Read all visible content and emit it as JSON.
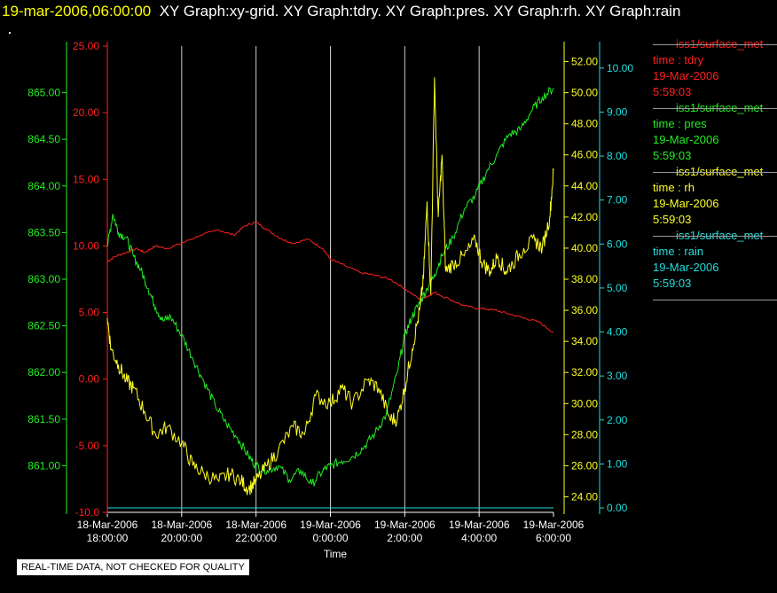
{
  "header": {
    "timestamp": "19-mar-2006,06:00:00",
    "graphs": "XY Graph:xy-grid.  XY Graph:tdry.  XY Graph:pres.  XY Graph:rh.  XY Graph:rain"
  },
  "notice": "REAL-TIME DATA, NOT CHECKED FOR QUALITY",
  "colors": {
    "tdry": "#ff2020",
    "pres": "#22ee22",
    "rh": "#ffff22",
    "rain": "#22dddd",
    "grid": "#cccccc"
  },
  "legend": [
    {
      "source": "iss1/surface_met",
      "time_label": "time : tdry",
      "date": "19-Mar-2006",
      "time": "5:59:03",
      "color": "#ff2020"
    },
    {
      "source": "iss1/surface_met",
      "time_label": "time : pres",
      "date": "19-Mar-2006",
      "time": "5:59:03",
      "color": "#22ee22"
    },
    {
      "source": "iss1/surface_met",
      "time_label": "time : rh",
      "date": "19-Mar-2006",
      "time": "5:59:03",
      "color": "#ffff22"
    },
    {
      "source": "iss1/surface_met",
      "time_label": "time : rain",
      "date": "19-Mar-2006",
      "time": "5:59:03",
      "color": "#22dddd"
    }
  ],
  "chart_data": {
    "type": "line",
    "xlabel": "Time",
    "x_ticks": [
      {
        "label1": "18-Mar-2006",
        "label2": "18:00:00",
        "h": 0
      },
      {
        "label1": "18-Mar-2006",
        "label2": "20:00:00",
        "h": 2
      },
      {
        "label1": "18-Mar-2006",
        "label2": "22:00:00",
        "h": 4
      },
      {
        "label1": "19-Mar-2006",
        "label2": "0:00:00",
        "h": 6
      },
      {
        "label1": "19-Mar-2006",
        "label2": "2:00:00",
        "h": 8
      },
      {
        "label1": "19-Mar-2006",
        "label2": "4:00:00",
        "h": 10
      },
      {
        "label1": "19-Mar-2006",
        "label2": "6:00:00",
        "h": 12
      }
    ],
    "xlim": [
      0,
      12
    ],
    "grid": true,
    "axes": {
      "pres": {
        "ylim": [
          860.5,
          865.5
        ],
        "ticks": [
          "861.00",
          "861.50",
          "862.00",
          "862.50",
          "863.00",
          "863.50",
          "864.00",
          "864.50",
          "865.00"
        ]
      },
      "tdry": {
        "ylim": [
          -10,
          25
        ],
        "ticks": [
          "-10.0",
          "-5.00",
          "0.00",
          "5.00",
          "10.00",
          "15.00",
          "20.00",
          "25.00"
        ]
      },
      "rh": {
        "ylim": [
          23,
          53
        ],
        "ticks": [
          "24.00",
          "26.00",
          "28.00",
          "30.00",
          "32.00",
          "34.00",
          "36.00",
          "38.00",
          "40.00",
          "42.00",
          "44.00",
          "46.00",
          "48.00",
          "50.00",
          "52.00"
        ]
      },
      "rain": {
        "ylim": [
          -0.1,
          10.5
        ],
        "ticks": [
          "0.00",
          "1.00",
          "2.00",
          "3.00",
          "4.00",
          "5.00",
          "6.00",
          "7.00",
          "8.00",
          "9.00",
          "10.00"
        ]
      }
    },
    "series": [
      {
        "name": "tdry",
        "axis": "tdry",
        "x": [
          0,
          0.2,
          0.5,
          0.8,
          1,
          1.3,
          1.6,
          2,
          2.5,
          3,
          3.4,
          3.7,
          4,
          4.3,
          4.7,
          5,
          5.4,
          5.8,
          6,
          6.4,
          6.8,
          7.2,
          7.6,
          8,
          8.4,
          8.6,
          8.8,
          9.2,
          9.6,
          10,
          10.4,
          10.8,
          11.2,
          11.6,
          12
        ],
        "values": [
          8.8,
          9.2,
          9.5,
          9.8,
          9.5,
          10,
          9.8,
          10.2,
          10.8,
          11.2,
          10.8,
          11.5,
          11.8,
          11.2,
          10.5,
          10.2,
          10.5,
          9.8,
          9.0,
          8.5,
          8.0,
          7.8,
          7.5,
          6.8,
          6.0,
          6.2,
          6.5,
          6.0,
          5.5,
          5.3,
          5.2,
          4.9,
          4.6,
          4.3,
          3.5
        ]
      },
      {
        "name": "pres",
        "axis": "pres",
        "x": [
          0,
          0.15,
          0.3,
          0.5,
          0.7,
          0.9,
          1.1,
          1.3,
          1.5,
          1.7,
          2,
          2.3,
          2.6,
          2.9,
          3.2,
          3.5,
          3.8,
          4,
          4.3,
          4.6,
          4.9,
          5.2,
          5.5,
          5.8,
          6,
          6.3,
          6.6,
          6.9,
          7.2,
          7.5,
          7.8,
          8,
          8.2,
          8.4,
          8.6,
          8.8,
          9,
          9.3,
          9.6,
          9.9,
          10.2,
          10.5,
          10.8,
          11.1,
          11.4,
          11.7,
          12
        ],
        "values": [
          863.35,
          863.7,
          863.5,
          863.45,
          863.25,
          863.1,
          862.9,
          862.7,
          862.55,
          862.6,
          862.4,
          862.15,
          861.9,
          861.65,
          861.45,
          861.3,
          861.1,
          861.0,
          860.95,
          861.0,
          860.85,
          860.95,
          860.8,
          860.95,
          861.0,
          861.05,
          861.1,
          861.2,
          861.35,
          861.55,
          862.0,
          862.4,
          862.6,
          862.75,
          862.9,
          863.05,
          863.25,
          863.45,
          863.75,
          863.9,
          864.15,
          864.35,
          864.55,
          864.6,
          864.8,
          864.95,
          865.05
        ]
      },
      {
        "name": "rh",
        "axis": "rh",
        "x": [
          0,
          0.1,
          0.3,
          0.5,
          0.7,
          1,
          1.3,
          1.6,
          2,
          2.3,
          2.6,
          3,
          3.3,
          3.6,
          3.8,
          4,
          4.3,
          4.6,
          5,
          5.3,
          5.6,
          6,
          6.3,
          6.6,
          7,
          7.3,
          7.6,
          7.8,
          8,
          8.2,
          8.4,
          8.5,
          8.6,
          8.7,
          8.8,
          8.9,
          9,
          9.1,
          9.3,
          9.6,
          9.9,
          10.1,
          10.3,
          10.5,
          10.7,
          10.9,
          11.2,
          11.5,
          11.7,
          11.9,
          12
        ],
        "values": [
          35.5,
          33.5,
          32.5,
          31.5,
          31.0,
          29.5,
          28.0,
          28.5,
          27.5,
          26.0,
          25.5,
          25.0,
          25.5,
          25.0,
          24.5,
          25.0,
          26.0,
          27.0,
          28.5,
          28.0,
          30.5,
          30.0,
          31.0,
          30.0,
          31.5,
          31.0,
          29.0,
          29.0,
          31.0,
          33.5,
          36.0,
          38.0,
          43.0,
          37.0,
          51.0,
          42.0,
          46.0,
          38.5,
          39.0,
          39.5,
          40.5,
          39.0,
          38.5,
          39.5,
          38.5,
          39.0,
          40.0,
          40.5,
          40.0,
          42.0,
          45.0
        ]
      },
      {
        "name": "rain",
        "axis": "rain",
        "x": [
          0,
          12
        ],
        "values": [
          0.0,
          0.0
        ]
      }
    ]
  }
}
